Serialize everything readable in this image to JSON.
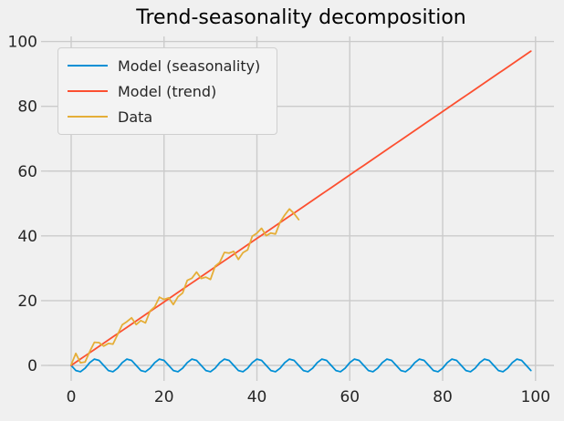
{
  "title": "Trend-seasonality decomposition",
  "colors": {
    "figure_background": "#f0f0f0",
    "grid": "#cbcbcb",
    "tick_label": "#262626",
    "legend_background": "#f3f3f3",
    "legend_border": "#cfcfcf",
    "seasonality_line": "#008fd5",
    "trend_line": "#fc4f30",
    "data_line": "#e5ae38"
  },
  "chart_data": {
    "type": "line",
    "title": "Trend-seasonality decomposition",
    "xlabel": "",
    "ylabel": "",
    "grid": true,
    "legend_position": "upper left",
    "x_ticks": [
      0,
      20,
      40,
      60,
      80,
      100
    ],
    "y_ticks": [
      0,
      20,
      40,
      60,
      80,
      100
    ],
    "xlim": [
      -4.91,
      103.97
    ],
    "ylim": [
      -2.53,
      101.57
    ],
    "series": [
      {
        "name": "Model (seasonality)",
        "color": "#008fd5",
        "generator": {
          "kind": "sine",
          "amplitude": -2,
          "period": 7,
          "x_start": 0,
          "n": 100
        }
      },
      {
        "name": "Model (trend)",
        "color": "#fc4f30",
        "generator": {
          "kind": "linear",
          "slope": 0.98,
          "intercept": 0,
          "x_start": 0,
          "n": 100
        }
      },
      {
        "name": "Data",
        "color": "#e5ae38",
        "x_start": 0,
        "values": [
          0.2,
          3.72,
          0.81,
          1.07,
          4.29,
          7.15,
          7.04,
          5.96,
          6.78,
          6.57,
          9.53,
          12.55,
          13.51,
          14.7,
          12.62,
          13.84,
          13.13,
          16.79,
          18.11,
          21.07,
          20.36,
          20.88,
          18.8,
          21.19,
          22.35,
          26.27,
          26.93,
          28.82,
          26.84,
          27.26,
          26.55,
          30.61,
          31.83,
          34.89,
          34.68,
          35.2,
          32.72,
          34.81,
          35.67,
          39.89,
          40.85,
          42.34,
          40.06,
          40.88,
          40.57,
          44.23,
          46.45,
          48.31,
          46.9,
          45.02
        ]
      }
    ]
  }
}
